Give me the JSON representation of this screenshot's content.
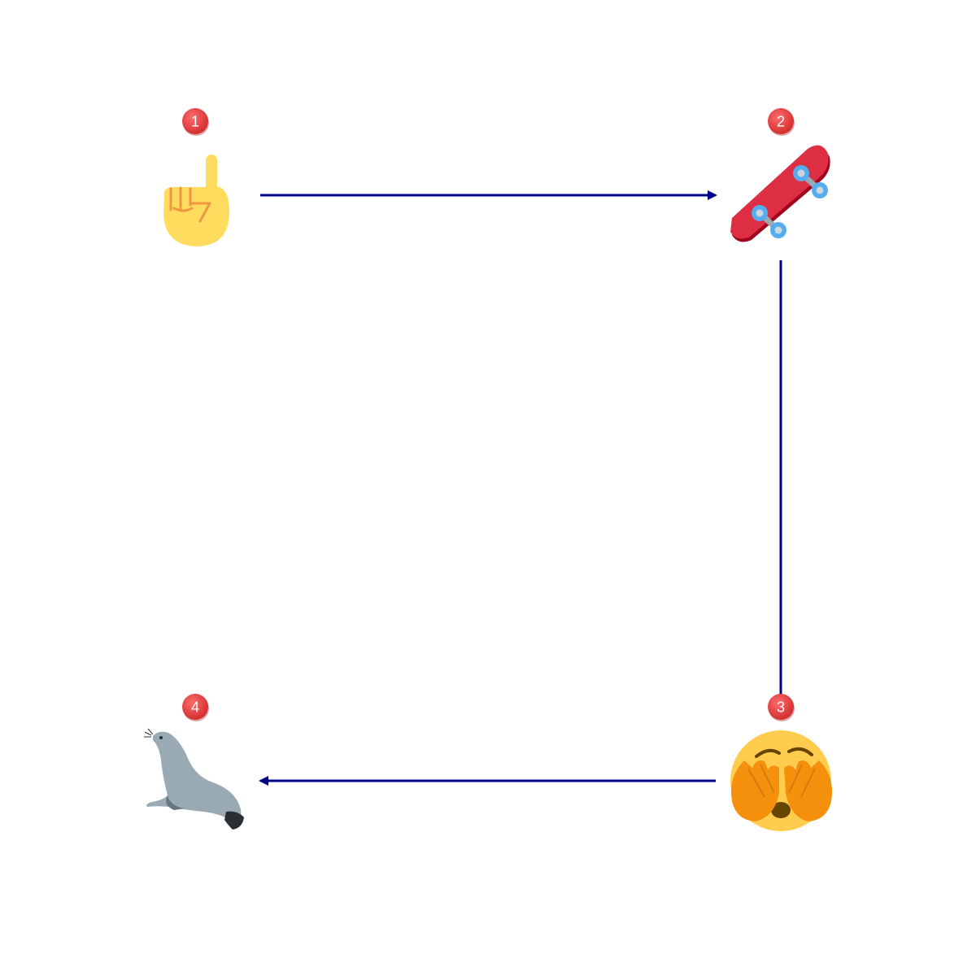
{
  "diagram": {
    "type": "flow",
    "direction": "clockwise",
    "colors": {
      "background": "#ffffff",
      "arrow": "#00008b",
      "badge": "#e53935",
      "badge_text": "#ffffff"
    },
    "nodes": [
      {
        "id": "n1",
        "step": "1",
        "icon": "index-pointing-up-icon"
      },
      {
        "id": "n2",
        "step": "2",
        "icon": "skateboard-icon"
      },
      {
        "id": "n3",
        "step": "3",
        "icon": "face-with-hands-over-eyes-icon"
      },
      {
        "id": "n4",
        "step": "4",
        "icon": "seal-icon"
      }
    ],
    "edges": [
      {
        "from": "n1",
        "to": "n2"
      },
      {
        "from": "n2",
        "to": "n3"
      },
      {
        "from": "n3",
        "to": "n4"
      }
    ]
  }
}
